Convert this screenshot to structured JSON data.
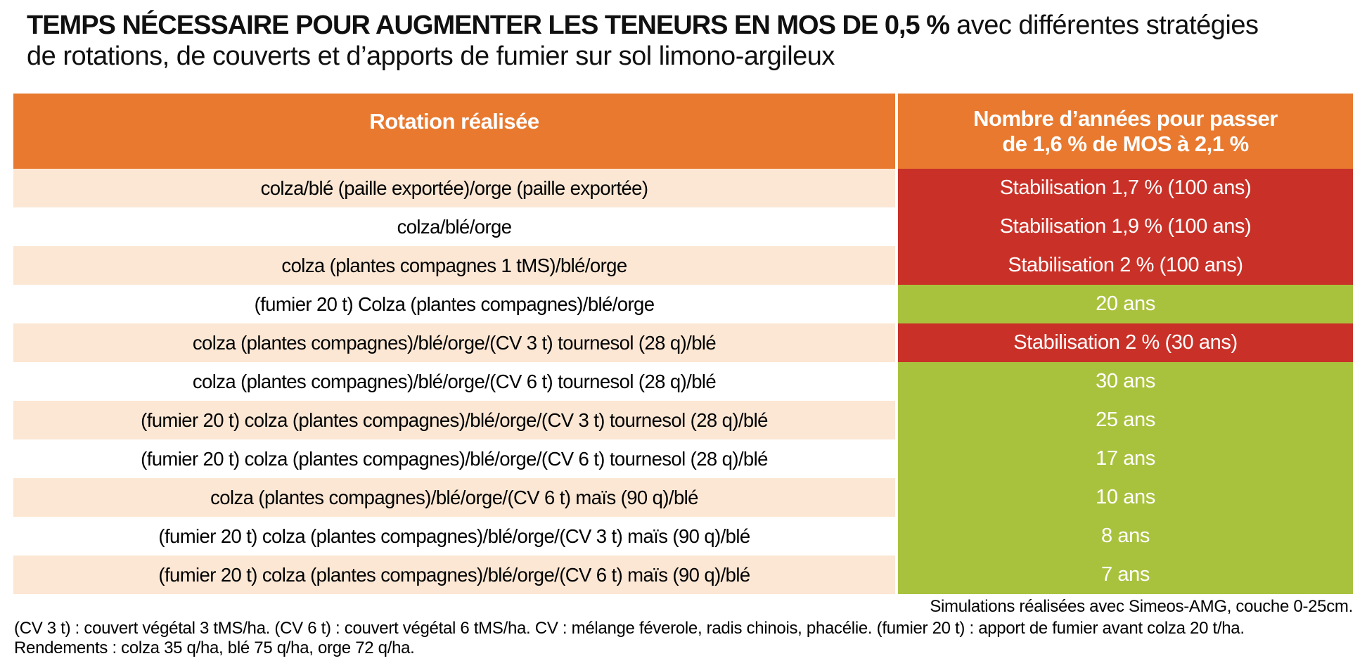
{
  "colors": {
    "header_orange": "#E8792F",
    "stabilisation_red": "#C93128",
    "years_green": "#A9C23E",
    "row_peach": "#FBE7D4",
    "row_white": "#FFFFFF",
    "text_white": "#FFFFFF",
    "text_black": "#101010"
  },
  "chart_data": {
    "type": "table",
    "title_bold": "TEMPS NÉCESSAIRE POUR AUGMENTER LES TENEURS EN MOS DE 0,5 %",
    "title_regular": " avec différentes stratégies",
    "title_line2": "de rotations, de couverts et d’apports de fumier sur sol limono-argileux",
    "columns": [
      "Rotation réalisée",
      "Nombre d’années pour passer de 1,6 % de MOS à 2,1 %"
    ],
    "header_left": "Rotation réalisée",
    "header_right_line1": "Nombre d’années pour passer",
    "header_right_line2": "de 1,6 % de MOS à 2,1 %",
    "rows": [
      {
        "rotation": "colza/blé (paille exportée)/orge (paille exportée)",
        "result": "Stabilisation 1,7 % (100 ans)",
        "status": "red"
      },
      {
        "rotation": "colza/blé/orge",
        "result": "Stabilisation 1,9 % (100 ans)",
        "status": "red"
      },
      {
        "rotation": "colza (plantes compagnes 1 tMS)/blé/orge",
        "result": "Stabilisation 2 % (100 ans)",
        "status": "red"
      },
      {
        "rotation": "(fumier 20 t) Colza (plantes compagnes)/blé/orge",
        "result": "20 ans",
        "status": "green"
      },
      {
        "rotation": "colza (plantes compagnes)/blé/orge/(CV 3 t) tournesol (28 q)/blé",
        "result": "Stabilisation 2 % (30 ans)",
        "status": "red"
      },
      {
        "rotation": "colza (plantes compagnes)/blé/orge/(CV 6 t) tournesol (28 q)/blé",
        "result": "30 ans",
        "status": "green"
      },
      {
        "rotation": "(fumier 20 t) colza (plantes compagnes)/blé/orge/(CV 3 t) tournesol (28 q)/blé",
        "result": "25 ans",
        "status": "green"
      },
      {
        "rotation": "(fumier 20 t) colza (plantes compagnes)/blé/orge/(CV 6 t) tournesol (28 q)/blé",
        "result": "17 ans",
        "status": "green"
      },
      {
        "rotation": "colza (plantes compagnes)/blé/orge/(CV 6 t) maïs (90 q)/blé",
        "result": "10 ans",
        "status": "green"
      },
      {
        "rotation": "(fumier 20 t) colza (plantes compagnes)/blé/orge/(CV 3 t) maïs (90 q)/blé",
        "result": "8 ans",
        "status": "green"
      },
      {
        "rotation": "(fumier 20 t) colza (plantes compagnes)/blé/orge/(CV 6 t) maïs (90 q)/blé",
        "result": "7 ans",
        "status": "green"
      }
    ],
    "notes": {
      "simulations": "Simulations réalisées avec Simeos-AMG, couche 0-25cm.",
      "definitions": "(CV 3 t) : couvert végétal 3 tMS/ha. (CV 6 t) : couvert végétal 6 tMS/ha. CV : mélange féverole, radis chinois, phacélie. (fumier 20 t) : apport de fumier avant colza 20 t/ha.",
      "yields": "Rendements : colza 35 q/ha, blé 75 q/ha, orge 72 q/ha."
    }
  }
}
